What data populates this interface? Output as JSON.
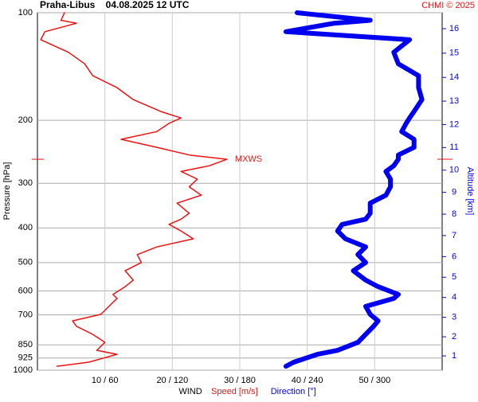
{
  "chart_data": {
    "type": "profile",
    "title": "Praha-Libus    04.08.2025 12 UTC",
    "credit": "CHMI © 2025",
    "y_label": "Pressure [hPa]",
    "y2_label": "Altitude [km]",
    "x_label": "WIND",
    "annotation": "MXWS",
    "log_y": true,
    "grid": true,
    "ylim": [
      1000,
      100
    ],
    "yticks": [
      100,
      200,
      300,
      400,
      500,
      600,
      700,
      850,
      925,
      1000
    ],
    "y2ticks": [
      1,
      2,
      3,
      4,
      5,
      6,
      7,
      8,
      9,
      10,
      11,
      12,
      13,
      14,
      15,
      16
    ],
    "xlim": [
      0,
      60
    ],
    "x2lim": [
      0,
      360
    ],
    "xticks": [
      {
        "value": 10,
        "label": "10 / 60"
      },
      {
        "value": 20,
        "label": "20 / 120"
      },
      {
        "value": 30,
        "label": "30 / 180"
      },
      {
        "value": 40,
        "label": "40 / 240"
      },
      {
        "value": 50,
        "label": "50 / 300"
      }
    ],
    "pressure": [
      975,
      950,
      903,
      880,
      836,
      794,
      754,
      728,
      698,
      663,
      630,
      614,
      584,
      560,
      527,
      500,
      475,
      452,
      429,
      408,
      391,
      378,
      364,
      341,
      324,
      307,
      292,
      278,
      268,
      257,
      250,
      238,
      226,
      215,
      204,
      197,
      189,
      175,
      162,
      150,
      139,
      129,
      119,
      113,
      107,
      105,
      100
    ],
    "series": [
      {
        "name": "Speed [m/s]",
        "color": "#ee1111",
        "axis": "x",
        "values": [
          2.9,
          7.6,
          11.8,
          8.8,
          10.0,
          8.2,
          5.8,
          5.2,
          9.4,
          10.6,
          11.8,
          11.2,
          13.0,
          14.2,
          13.0,
          15.4,
          14.8,
          17.7,
          23.1,
          21.3,
          19.5,
          21.3,
          22.5,
          20.7,
          24.3,
          22.5,
          23.7,
          21.3,
          25.5,
          28.1,
          22.5,
          17.7,
          12.4,
          17.7,
          19.5,
          21.3,
          18.3,
          14.2,
          11.8,
          8.2,
          7.0,
          4.6,
          0.5,
          1.1,
          5.8,
          3.5,
          4.0
        ]
      },
      {
        "name": "Direction [°]",
        "color": "#0000ee",
        "axis": "x2",
        "values": [
          221,
          228,
          249,
          267,
          285,
          292,
          299,
          303,
          296,
          292,
          317,
          321,
          303,
          292,
          281,
          292,
          285,
          292,
          274,
          267,
          271,
          292,
          296,
          296,
          310,
          314,
          314,
          310,
          317,
          321,
          321,
          335,
          335,
          324,
          328,
          331,
          335,
          342,
          339,
          339,
          321,
          317,
          331,
          221,
          264,
          296,
          231
        ]
      }
    ]
  }
}
